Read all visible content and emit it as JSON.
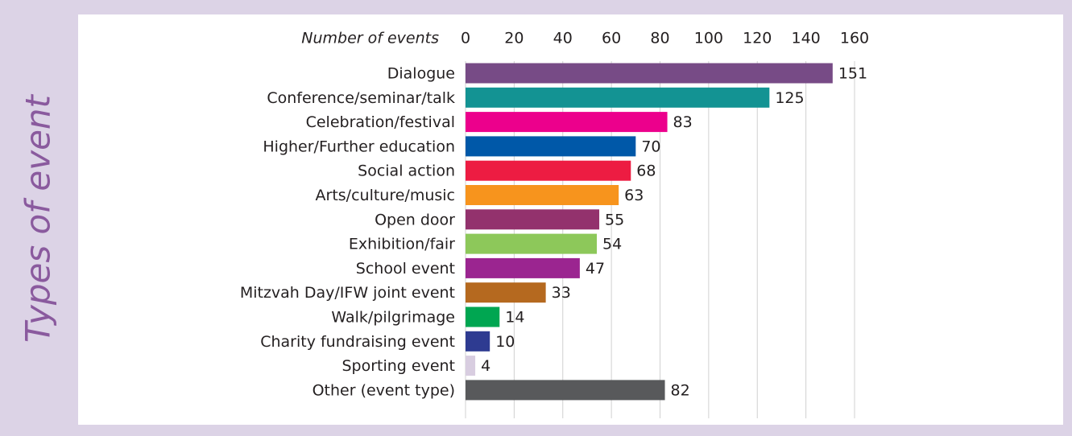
{
  "chart_data": {
    "type": "bar",
    "orientation": "horizontal",
    "xlabel": "Number of events",
    "ylabel": "Types of event",
    "categories": [
      "Dialogue",
      "Conference/seminar/talk",
      "Celebration/festival",
      "Higher/Further education",
      "Social action",
      "Arts/culture/music",
      "Open door",
      "Exhibition/fair",
      "School event",
      "Mitzvah Day/IFW joint event",
      "Walk/pilgrimage",
      "Charity fundraising event",
      "Sporting event",
      "Other (event type)"
    ],
    "values": [
      151,
      125,
      83,
      70,
      68,
      63,
      55,
      54,
      47,
      33,
      14,
      10,
      4,
      82
    ],
    "colors": [
      "#774b86",
      "#139393",
      "#ec008c",
      "#0058a8",
      "#ed1c42",
      "#f7941d",
      "#93326d",
      "#8dc85a",
      "#9b2590",
      "#b5691f",
      "#00a651",
      "#2e3b91",
      "#d8cde0",
      "#58595b"
    ],
    "xlim": [
      0,
      160
    ],
    "xticks": [
      0,
      20,
      40,
      60,
      80,
      100,
      120,
      140,
      160
    ],
    "grid": true
  }
}
